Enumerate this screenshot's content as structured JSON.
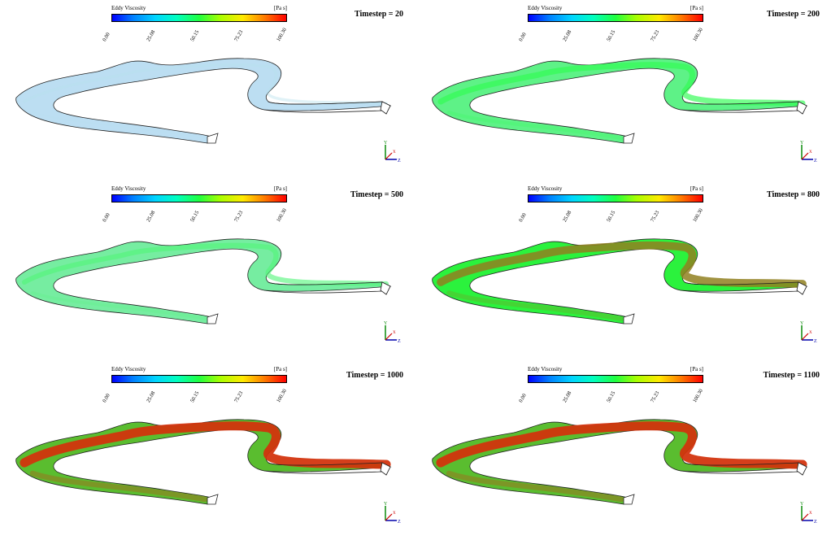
{
  "legend": {
    "title": "Eddy Viscosity",
    "unit": "[Pa s]",
    "ticks": [
      "0.00",
      "25.08",
      "50.15",
      "75.23",
      "100.30"
    ]
  },
  "panels": [
    {
      "timestep_label": "Timestep = 20",
      "fill_level": 0.05
    },
    {
      "timestep_label": "Timestep = 200",
      "fill_level": 0.45
    },
    {
      "timestep_label": "Timestep = 500",
      "fill_level": 0.35
    },
    {
      "timestep_label": "Timestep = 800",
      "fill_level": 0.75
    },
    {
      "timestep_label": "Timestep = 1000",
      "fill_level": 0.9
    },
    {
      "timestep_label": "Timestep = 1100",
      "fill_level": 0.9
    }
  ],
  "axis_labels": {
    "y": "Y",
    "x": "X",
    "z": "Z"
  },
  "colors": {
    "low": "#0000ff",
    "mid": "#20ff40",
    "high": "#ff0000",
    "outline": "#222222"
  }
}
